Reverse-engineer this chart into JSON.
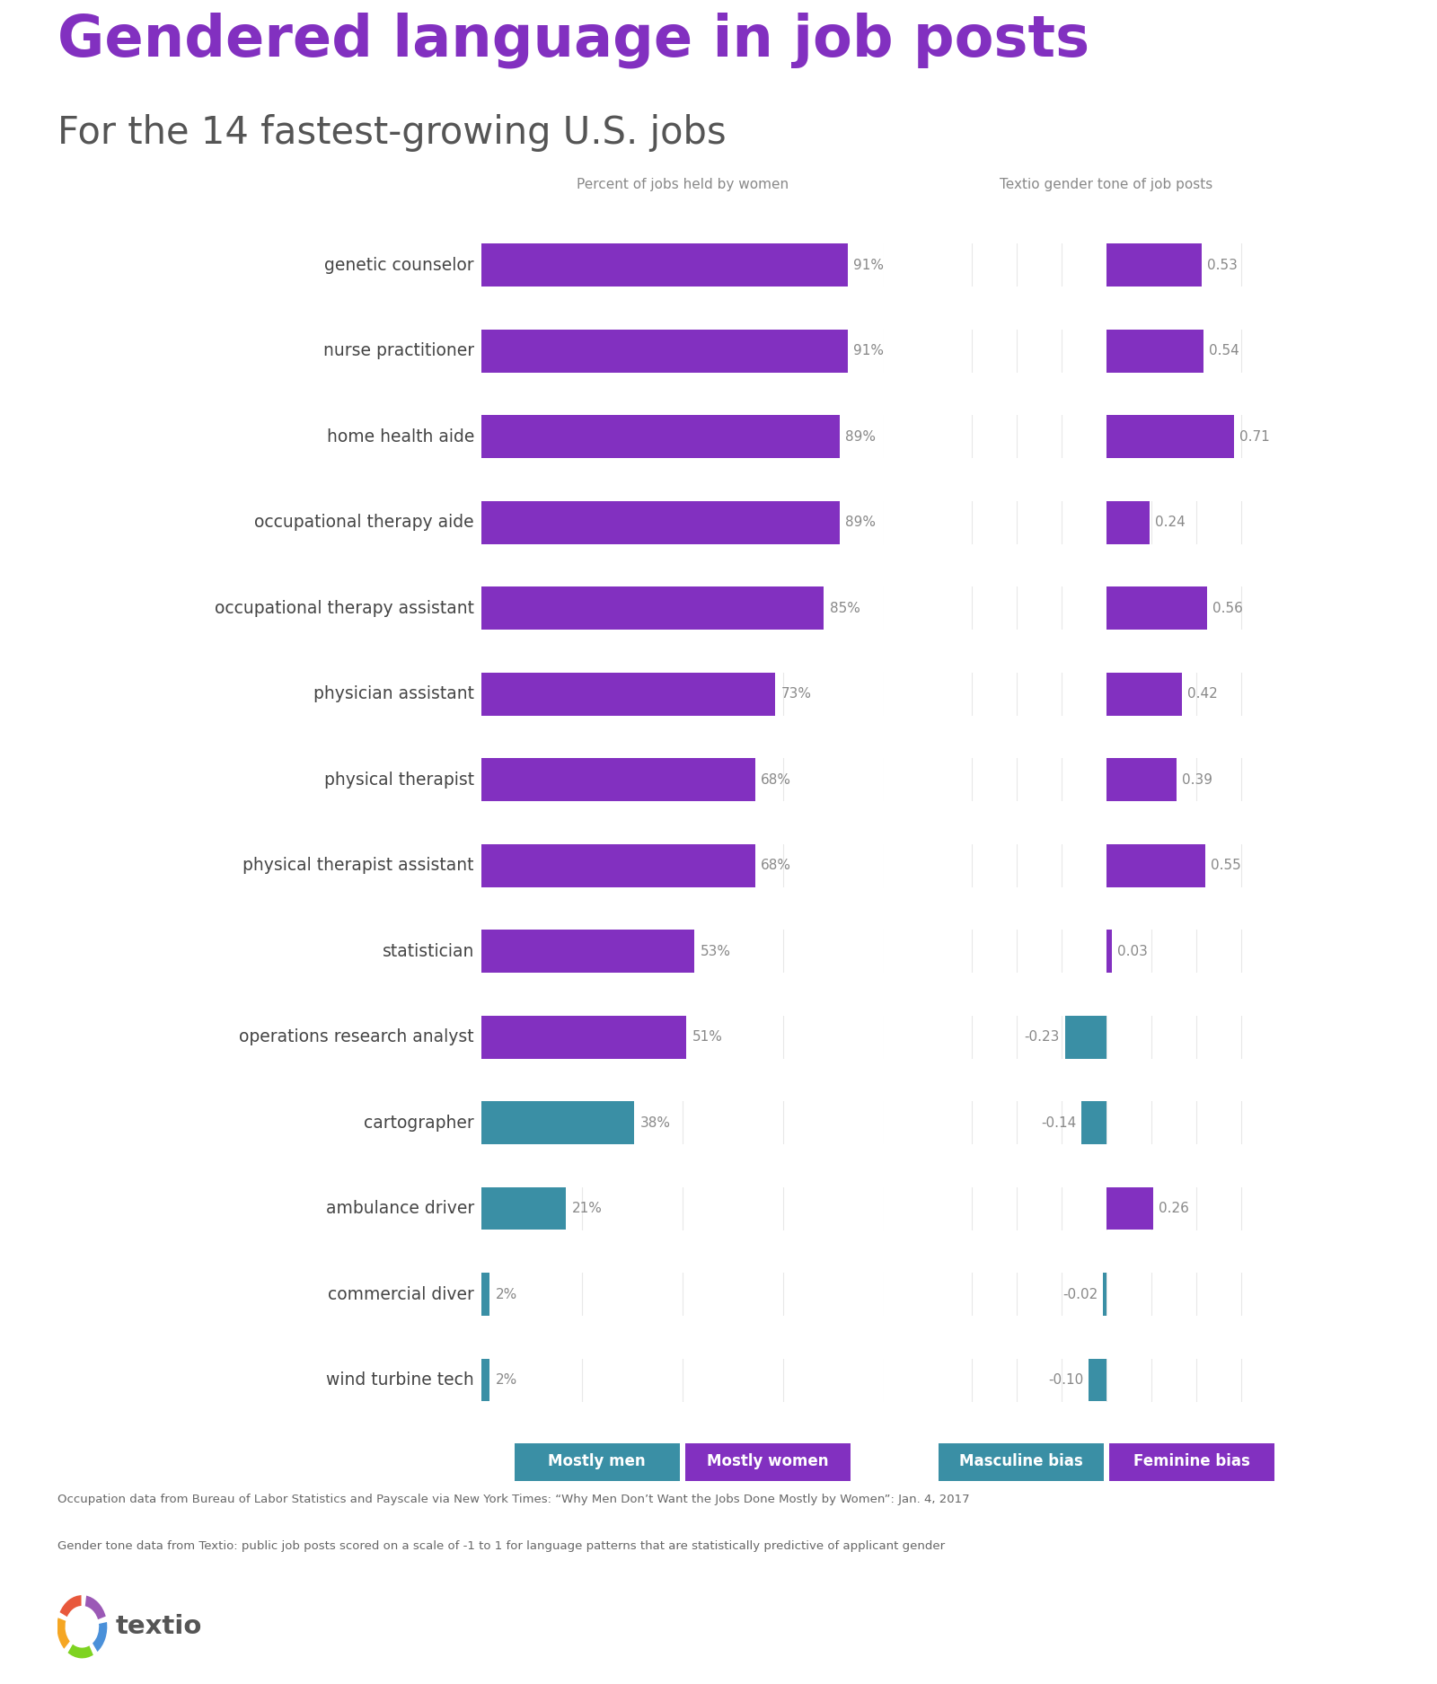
{
  "title": "Gendered language in job posts",
  "subtitle": "For the 14 fastest-growing U.S. jobs",
  "col1_header": "Percent of jobs held by women",
  "col2_header": "Textio gender tone of job posts",
  "jobs": [
    "genetic counselor",
    "nurse practitioner",
    "home health aide",
    "occupational therapy aide",
    "occupational therapy assistant",
    "physician assistant",
    "physical therapist",
    "physical therapist assistant",
    "statistician",
    "operations research analyst",
    "cartographer",
    "ambulance driver",
    "commercial diver",
    "wind turbine tech"
  ],
  "pct_women": [
    91,
    91,
    89,
    89,
    85,
    73,
    68,
    68,
    53,
    51,
    38,
    21,
    2,
    2
  ],
  "gender_tone": [
    0.53,
    0.54,
    0.71,
    0.24,
    0.56,
    0.42,
    0.39,
    0.55,
    0.03,
    -0.23,
    -0.14,
    0.26,
    -0.02,
    -0.1
  ],
  "pct_mostly_women_threshold": 50,
  "bar_purple": "#8230C0",
  "bar_teal": "#3A8FA5",
  "title_color": "#8230C0",
  "subtitle_color": "#555555",
  "label_color": "#444444",
  "value_color": "#888888",
  "background_color": "#FFFFFF",
  "footnote_line1": "Occupation data from Bureau of Labor Statistics and Payscale via New York Times: “Why Men Don’t Want the Jobs Done Mostly by Women”: Jan. 4, 2017",
  "footnote_line2": "Gender tone data from Textio: public job posts scored on a scale of -1 to 1 for language patterns that are statistically predictive of applicant gender",
  "legend_mostly_men_color": "#3A8FA5",
  "legend_mostly_women_color": "#8230C0",
  "legend_masculine_bias_color": "#3A8FA5",
  "legend_feminine_bias_color": "#8230C0"
}
